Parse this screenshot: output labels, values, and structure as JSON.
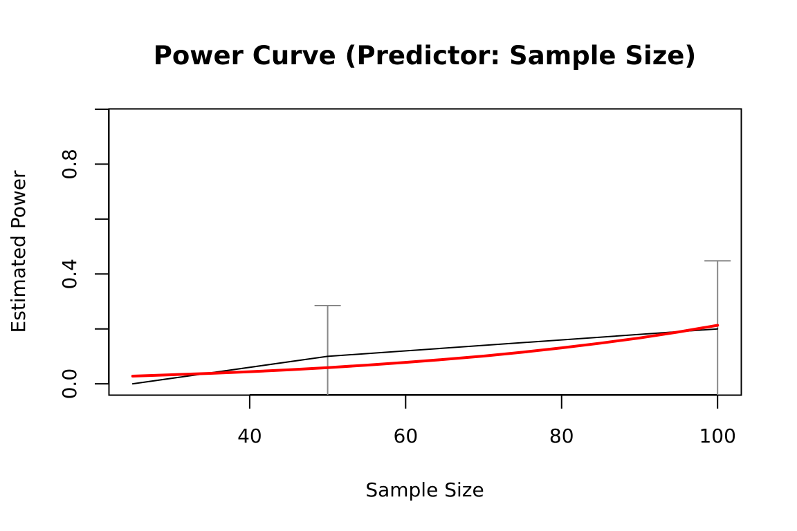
{
  "chart_data": {
    "type": "line",
    "title": "Power Curve (Predictor: Sample Size)",
    "xlabel": "Sample Size",
    "ylabel": "Estimated Power",
    "xlim": [
      22,
      103
    ],
    "ylim": [
      -0.04,
      1.0
    ],
    "x_ticks": [
      40,
      60,
      80,
      100
    ],
    "x_tick_labels": [
      "40",
      "60",
      "80",
      "100"
    ],
    "y_ticks": [
      0.0,
      0.2,
      0.4,
      0.6,
      0.8,
      1.0
    ],
    "y_tick_labels": [
      "0.0",
      "",
      "0.4",
      "",
      "0.8",
      ""
    ],
    "grid": false,
    "series": [
      {
        "role": "observed",
        "color": "#000000",
        "x": [
          25,
          50,
          100
        ],
        "y": [
          0.0,
          0.1,
          0.2
        ]
      },
      {
        "role": "fitted",
        "color": "#ff0000",
        "x": [
          25,
          30,
          35,
          40,
          45,
          50,
          55,
          60,
          65,
          70,
          75,
          80,
          85,
          90,
          95,
          100
        ],
        "y": [
          0.028,
          0.033,
          0.038,
          0.044,
          0.051,
          0.059,
          0.068,
          0.078,
          0.089,
          0.101,
          0.115,
          0.131,
          0.148,
          0.167,
          0.189,
          0.213
        ]
      }
    ],
    "error_bars": {
      "color": "#888888",
      "points": [
        {
          "x": 50,
          "lower": -0.04,
          "upper": 0.285
        },
        {
          "x": 100,
          "lower": -0.04,
          "upper": 0.448
        }
      ]
    }
  }
}
